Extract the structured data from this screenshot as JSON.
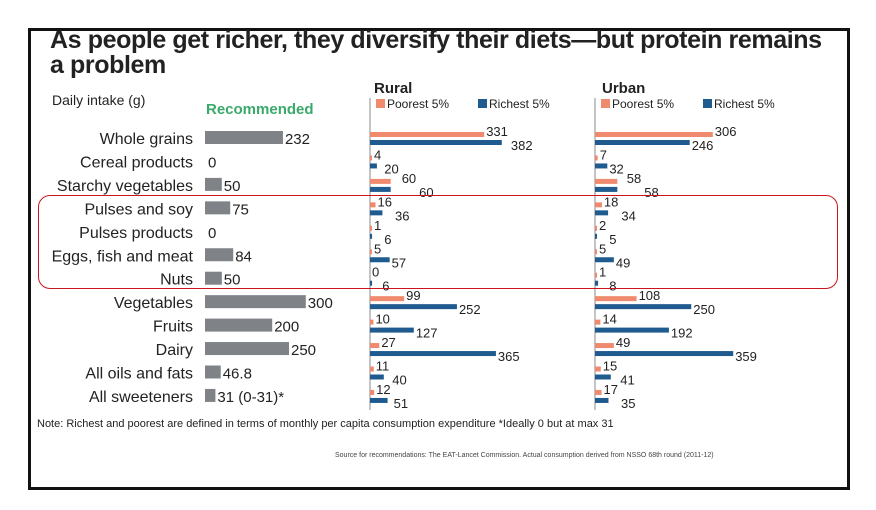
{
  "chart_data": {
    "type": "bar",
    "title": "As people get richer, they diversify their diets—but protein remains a problem",
    "ylabel": "Daily intake (g)",
    "categories": [
      "Whole grains",
      "Cereal products",
      "Starchy vegetables",
      "Pulses and soy",
      "Pulses products",
      "Eggs, fish and meat",
      "Nuts",
      "Vegetables",
      "Fruits",
      "Dairy",
      "All oils and fats",
      "All sweeteners"
    ],
    "recommended": {
      "name": "Recommended",
      "values": [
        232,
        0,
        50,
        75,
        0,
        84,
        50,
        300,
        200,
        250,
        46.8,
        31
      ],
      "labels": [
        "232",
        "0",
        "50",
        "75",
        "0",
        "84",
        "50",
        "300",
        "200",
        "250",
        "46.8",
        "31 (0-31)*"
      ]
    },
    "panels": [
      {
        "name": "Rural",
        "series": [
          {
            "name": "Poorest 5%",
            "values": [
              331,
              4,
              60,
              16,
              1,
              5,
              0,
              99,
              10,
              27,
              11,
              12
            ]
          },
          {
            "name": "Richest 5%",
            "values": [
              382,
              20,
              60,
              36,
              6,
              57,
              6,
              252,
              127,
              365,
              40,
              51
            ]
          }
        ]
      },
      {
        "name": "Urban",
        "series": [
          {
            "name": "Poorest 5%",
            "values": [
              306,
              7,
              58,
              18,
              2,
              5,
              1,
              108,
              14,
              49,
              15,
              17
            ]
          },
          {
            "name": "Richest 5%",
            "values": [
              246,
              32,
              58,
              34,
              5,
              49,
              8,
              250,
              192,
              359,
              41,
              35
            ]
          }
        ]
      }
    ],
    "colors": {
      "recommended": "#7f8388",
      "poorest": "#f08a6e",
      "richest": "#1f5b8f",
      "recommended_label": "#3aaa6a",
      "highlight": "#c8161d"
    },
    "note": "Note: Richest and poorest are defined in terms of monthly per capita consumption expenditure *Ideally 0 but at max 31",
    "source": "Source for recommendations: The EAT-Lancet Commission. Actual consumption derived from NSSO 68th round (2011-12)"
  }
}
